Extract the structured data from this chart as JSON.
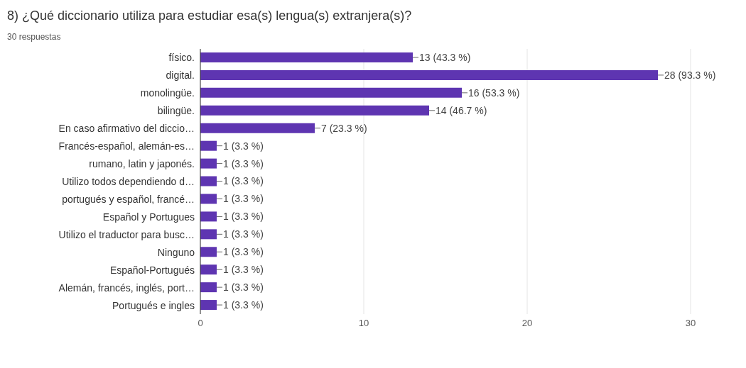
{
  "chart_data": {
    "type": "bar",
    "orientation": "horizontal",
    "title": "8) ¿Qué diccionario utiliza para estudiar esa(s) lengua(s) extranjera(s)?",
    "subtitle": "30 respuestas",
    "categories": [
      "físico.",
      "digital.",
      "monolingüe.",
      "bilingüe.",
      "En caso afirmativo del diccio…",
      "Francés-español, alemán-es…",
      "rumano, latin y japonés.",
      "Utilizo todos dependiendo d…",
      "portugués y español, francé…",
      "Español y Portugues",
      "Utilizo el traductor para busc…",
      "Ninguno",
      "Español-Portugués",
      "Alemán, francés, inglés, port…",
      "Portugués e ingles"
    ],
    "values": [
      13,
      28,
      16,
      14,
      7,
      1,
      1,
      1,
      1,
      1,
      1,
      1,
      1,
      1,
      1
    ],
    "value_labels": [
      "13 (43.3 %)",
      "28 (93.3 %)",
      "16 (53.3 %)",
      "14 (46.7 %)",
      "7 (23.3 %)",
      "1 (3.3 %)",
      "1 (3.3 %)",
      "1 (3.3 %)",
      "1 (3.3 %)",
      "1 (3.3 %)",
      "1 (3.3 %)",
      "1 (3.3 %)",
      "1 (3.3 %)",
      "1 (3.3 %)",
      "1 (3.3 %)"
    ],
    "color": "#5e35b1",
    "xlim": [
      0,
      30
    ],
    "xticks": [
      0,
      10,
      20,
      30
    ],
    "grid": "x"
  }
}
